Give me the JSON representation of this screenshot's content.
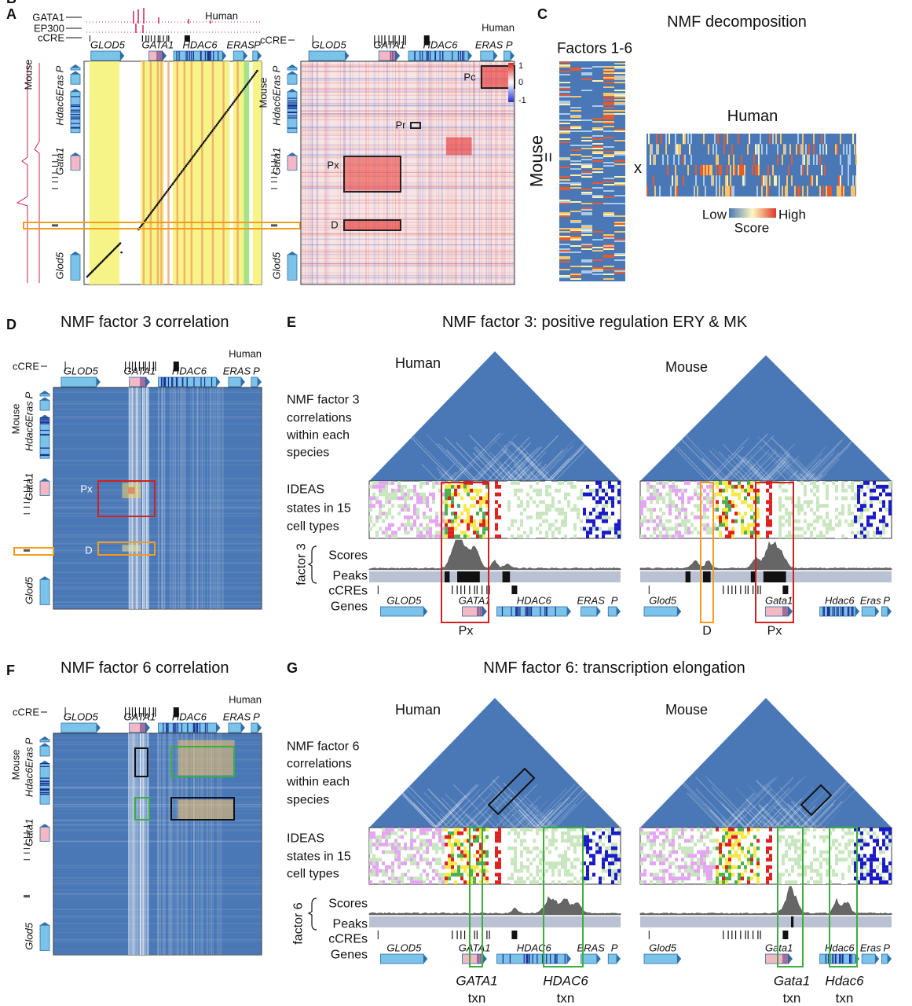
{
  "panels": {
    "A": {
      "letter": "A",
      "tracks": [
        "GATA1",
        "EP300",
        "cCRE"
      ],
      "species_top": "Human",
      "genes_top": [
        "GLOD5",
        "GATA1",
        "HDAC6",
        "ERAS",
        "P"
      ],
      "species_side": "Mouse",
      "genes_side": [
        "Eras",
        "P",
        "Hdac6",
        "Gata1",
        "Glod5"
      ]
    },
    "B": {
      "letter": "B",
      "track": "cCRE",
      "species_top": "Human",
      "genes_top": [
        "GLOD5",
        "GATA1",
        "HDAC6",
        "ERAS",
        "P"
      ],
      "species_side": "Mouse",
      "genes_side": [
        "Eras",
        "P",
        "Hdac6",
        "Gata1",
        "Glod5"
      ],
      "boxes": [
        "Pc",
        "Pr",
        "Px",
        "D"
      ],
      "colorbar": [
        1,
        0,
        -1
      ]
    },
    "C": {
      "letter": "C",
      "title": "NMF decomposition",
      "factors": "Factors 1-6",
      "equals": "=",
      "mouse": "Mouse",
      "times": "x",
      "human": "Human",
      "low": "Low",
      "high": "High",
      "score": "Score"
    },
    "D": {
      "letter": "D",
      "title": "NMF factor 3 correlation",
      "track": "cCRE",
      "species_top": "Human",
      "genes_top": [
        "GLOD5",
        "GATA1",
        "HDAC6",
        "ERAS",
        "P"
      ],
      "species_side": "Mouse",
      "genes_side": [
        "Eras",
        "P",
        "Hdac6",
        "Gata1",
        "Glod5"
      ],
      "boxes": [
        "Px",
        "D"
      ]
    },
    "E": {
      "letter": "E",
      "title": "NMF factor 3: positive regulation ERY & MK",
      "species": [
        "Human",
        "Mouse"
      ],
      "corr_label": [
        "NMF factor 3",
        "correlations",
        "within each",
        "species"
      ],
      "ideas_label": [
        "IDEAS",
        "states in 15",
        "cell types"
      ],
      "factor": "factor 3",
      "scores": "Scores",
      "peaks": "Peaks",
      "ccres": "cCREs",
      "genes": "Genes",
      "genes_human": [
        "GLOD5",
        "GATA1",
        "HDAC6",
        "ERAS",
        "P"
      ],
      "genes_mouse": [
        "Glod5",
        "Gata1",
        "Hdac6",
        "Eras",
        "P"
      ],
      "box_labels": [
        "Px",
        "D",
        "Px"
      ]
    },
    "F": {
      "letter": "F",
      "title": "NMF factor 6 correlation",
      "track": "cCRE",
      "species_top": "Human",
      "genes_top": [
        "GLOD5",
        "GATA1",
        "HDAC6",
        "ERAS",
        "P"
      ],
      "species_side": "Mouse",
      "genes_side": [
        "Eras",
        "P",
        "Hdac6",
        "Gata1",
        "Glod5"
      ]
    },
    "G": {
      "letter": "G",
      "title": "NMF factor 6: transcription elongation",
      "species": [
        "Human",
        "Mouse"
      ],
      "corr_label": [
        "NMF factor 6",
        "correlations",
        "within each",
        "species"
      ],
      "ideas_label": [
        "IDEAS",
        "states in 15",
        "cell types"
      ],
      "factor": "factor 6",
      "scores": "Scores",
      "peaks": "Peaks",
      "ccres": "cCREs",
      "genes": "Genes",
      "genes_human": [
        "GLOD5",
        "GATA1",
        "HDAC6",
        "ERAS",
        "P"
      ],
      "genes_mouse": [
        "Glod5",
        "Gata1",
        "Hdac6",
        "Eras",
        "P"
      ],
      "txn": [
        {
          "gene": "GATA1",
          "label": "txn"
        },
        {
          "gene": "HDAC6",
          "label": "txn"
        },
        {
          "gene": "Gata1",
          "label": "txn"
        },
        {
          "gene": "Hdac6",
          "label": "txn"
        }
      ]
    }
  }
}
